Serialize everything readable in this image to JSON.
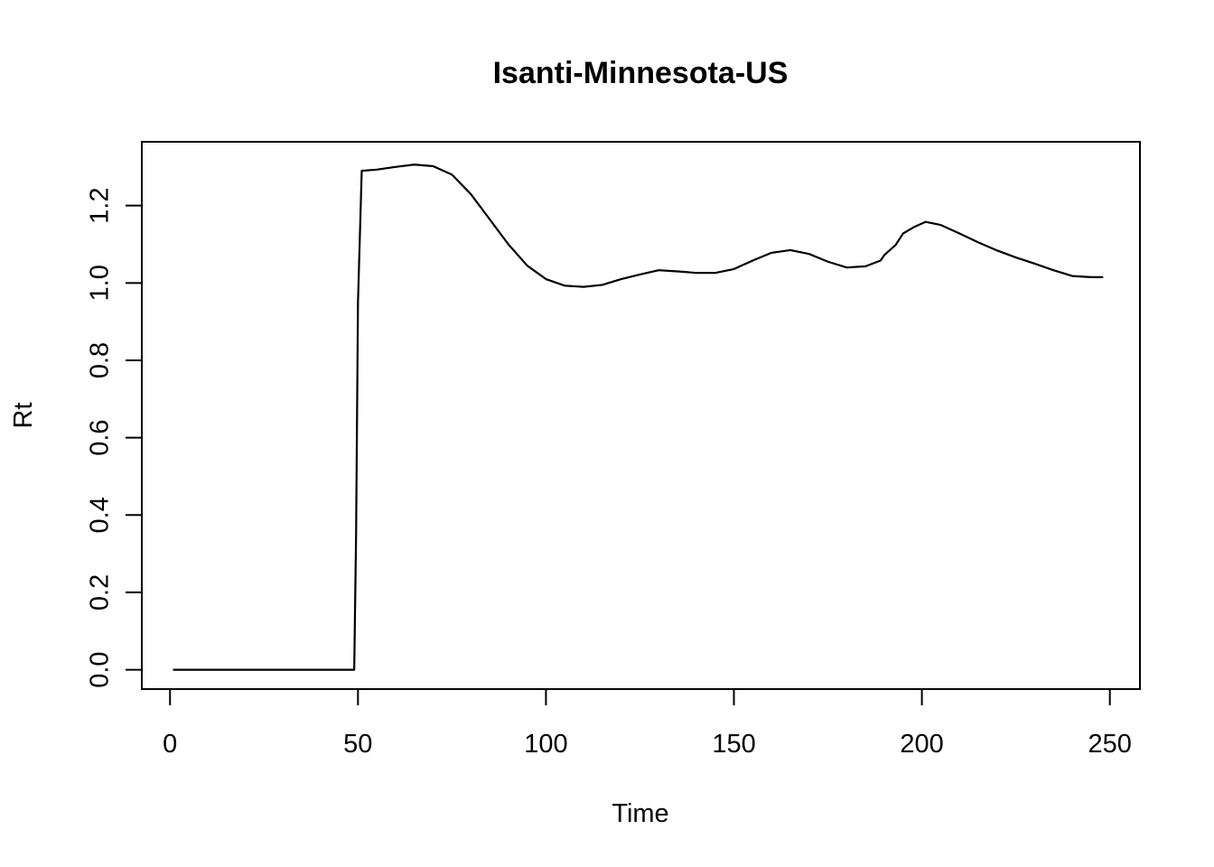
{
  "chart_data": {
    "type": "line",
    "title": "Isanti-Minnesota-US",
    "xlabel": "Time",
    "ylabel": "Rt",
    "xlim": [
      -7.5,
      258
    ],
    "ylim": [
      -0.05,
      1.365
    ],
    "x_ticks": [
      0,
      50,
      100,
      150,
      200,
      250
    ],
    "y_ticks": [
      0.0,
      0.2,
      0.4,
      0.6,
      0.8,
      1.0,
      1.2
    ],
    "x_tick_labels": [
      "0",
      "50",
      "100",
      "150",
      "200",
      "250"
    ],
    "y_tick_labels": [
      "0.0",
      "0.2",
      "0.4",
      "0.6",
      "0.8",
      "1.0",
      "1.2"
    ],
    "grid": false,
    "legend": "none",
    "line_color": "#000000",
    "series": [
      {
        "x": [
          1,
          5,
          10,
          20,
          30,
          40,
          49,
          49.5,
          50,
          51,
          55,
          60,
          65,
          70,
          75,
          80,
          85,
          90,
          95,
          100,
          105,
          110,
          115,
          120,
          125,
          130,
          135,
          140,
          145,
          150,
          155,
          160,
          165,
          170,
          175,
          180,
          185,
          189,
          190,
          193,
          195,
          198,
          201,
          205,
          210,
          215,
          220,
          225,
          230,
          235,
          240,
          245,
          248
        ],
        "y": [
          0.0,
          0.0,
          0.0,
          0.0,
          0.0,
          0.0,
          0.0,
          0.35,
          0.95,
          1.29,
          1.293,
          1.3,
          1.306,
          1.302,
          1.28,
          1.23,
          1.165,
          1.1,
          1.045,
          1.01,
          0.993,
          0.99,
          0.995,
          1.01,
          1.022,
          1.033,
          1.03,
          1.026,
          1.026,
          1.036,
          1.058,
          1.078,
          1.085,
          1.075,
          1.055,
          1.04,
          1.043,
          1.058,
          1.072,
          1.098,
          1.128,
          1.145,
          1.158,
          1.15,
          1.128,
          1.105,
          1.084,
          1.066,
          1.05,
          1.033,
          1.018,
          1.015,
          1.015
        ]
      }
    ]
  }
}
